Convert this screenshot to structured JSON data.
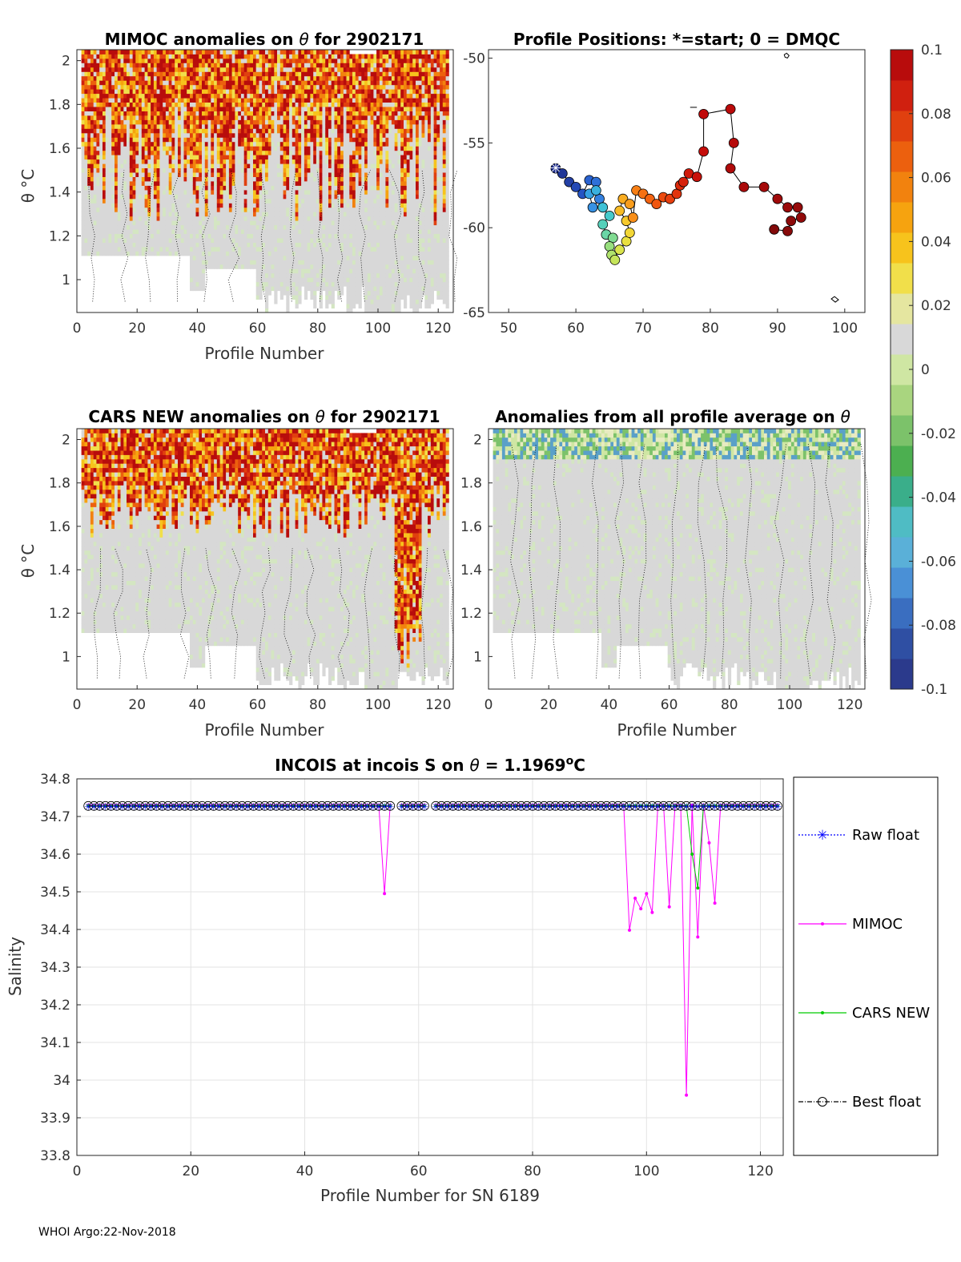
{
  "footer": "WHOI Argo:22-Nov-2018",
  "chart_data": [
    {
      "id": "mimoc",
      "type": "heatmap",
      "title_prefix": "MIMOC anomalies on ",
      "title_symbol": "θ",
      "title_suffix": "  for 2902171",
      "xlabel": "Profile Number",
      "ylabel": "θ °C",
      "xlim": [
        0,
        125
      ],
      "ylim": [
        0.85,
        2.05
      ],
      "xticks": [
        "0",
        "20",
        "40",
        "60",
        "80",
        "100",
        "120"
      ],
      "yticks": [
        "1",
        "1.2",
        "1.4",
        "1.6",
        "1.8",
        "2"
      ]
    },
    {
      "id": "positions",
      "type": "scatter",
      "title": "Profile Positions: *=start; 0 = DMQC",
      "xlim": [
        47,
        103
      ],
      "ylim": [
        -65,
        -49.5
      ],
      "xticks": [
        "50",
        "60",
        "70",
        "80",
        "90",
        "100"
      ],
      "yticks": [
        "-50",
        "-55",
        "-60",
        "-65"
      ],
      "track": [
        [
          57,
          -56.5
        ],
        [
          58,
          -56.8
        ],
        [
          59,
          -57.3
        ],
        [
          60,
          -57.6
        ],
        [
          61,
          -58
        ],
        [
          62,
          -57.2
        ],
        [
          63,
          -57.3
        ],
        [
          63.5,
          -58.3
        ],
        [
          62.5,
          -58.8
        ],
        [
          62,
          -58
        ],
        [
          63,
          -57.8
        ],
        [
          64,
          -58.8
        ],
        [
          65,
          -59.3
        ],
        [
          64,
          -59.8
        ],
        [
          64.5,
          -60.4
        ],
        [
          65.5,
          -60.6
        ],
        [
          65,
          -61.1
        ],
        [
          65.3,
          -61.6
        ],
        [
          65.8,
          -61.9
        ],
        [
          66.5,
          -61.3
        ],
        [
          67.5,
          -60.8
        ],
        [
          68,
          -60.3
        ],
        [
          67.5,
          -59.6
        ],
        [
          66.5,
          -59
        ],
        [
          67,
          -58.3
        ],
        [
          68,
          -58.6
        ],
        [
          68.5,
          -59.4
        ],
        [
          69,
          -57.8
        ],
        [
          70,
          -58
        ],
        [
          71,
          -58.3
        ],
        [
          72,
          -58.6
        ],
        [
          73,
          -58.2
        ],
        [
          74,
          -58.3
        ],
        [
          75,
          -58
        ],
        [
          75.5,
          -57.5
        ],
        [
          76,
          -57.3
        ],
        [
          76.8,
          -56.8
        ],
        [
          78,
          -57
        ],
        [
          79,
          -55.5
        ],
        [
          79,
          -53.3
        ],
        [
          83,
          -53
        ],
        [
          83.5,
          -55
        ],
        [
          83,
          -56.5
        ],
        [
          85,
          -57.6
        ],
        [
          88,
          -57.6
        ],
        [
          90,
          -58.3
        ],
        [
          91.5,
          -58.8
        ],
        [
          93,
          -58.8
        ],
        [
          93.5,
          -59.4
        ],
        [
          92,
          -59.6
        ],
        [
          91.5,
          -60.2
        ],
        [
          89.5,
          -60.1
        ]
      ],
      "track_colors": [
        "#1a2a8c",
        "#1f3597",
        "#2340a5",
        "#2348b5",
        "#2555c4",
        "#2a62cf",
        "#2f70d8",
        "#3380df",
        "#3791e3",
        "#37a1e3",
        "#3ab1de",
        "#3ec1d6",
        "#45cacb",
        "#55d0ba",
        "#6ad6a6",
        "#80db92",
        "#98df7e",
        "#b0e26c",
        "#c6e55b",
        "#dae44d",
        "#e9e040",
        "#f2d636",
        "#f6c92d",
        "#f8bb26",
        "#f9ac20",
        "#f99d1c",
        "#f88e18",
        "#f77f15",
        "#f57113",
        "#f36311",
        "#f0560f",
        "#ec4a0e",
        "#e73e0d",
        "#e2340c",
        "#dc2a0b",
        "#d6210b",
        "#d0190a",
        "#ca120a",
        "#c50d0a",
        "#c00a0a",
        "#bb0a0a",
        "#b60a0a",
        "#b00a0a",
        "#aa0a0a",
        "#a50a0a",
        "#a00a0a",
        "#9b0a0a",
        "#960a0a",
        "#910a0a",
        "#8c0a0a",
        "#870a0a",
        "#820a0a"
      ]
    },
    {
      "id": "cars",
      "type": "heatmap",
      "title_prefix": "CARS NEW anomalies on ",
      "title_symbol": "θ",
      "title_suffix": " for 2902171",
      "xlabel": "Profile Number",
      "ylabel": "θ °C",
      "xlim": [
        0,
        125
      ],
      "ylim": [
        0.85,
        2.05
      ],
      "xticks": [
        "0",
        "20",
        "40",
        "60",
        "80",
        "100",
        "120"
      ],
      "yticks": [
        "1",
        "1.2",
        "1.4",
        "1.6",
        "1.8",
        "2"
      ]
    },
    {
      "id": "allavg",
      "type": "heatmap",
      "title_prefix": "Anomalies from all profile average on ",
      "title_symbol": "θ",
      "title_suffix": "",
      "xlabel": "Profile Number",
      "xlim": [
        0,
        125
      ],
      "ylim": [
        0.85,
        2.05
      ],
      "xticks": [
        "0",
        "20",
        "40",
        "60",
        "80",
        "100",
        "120"
      ],
      "yticks": [
        "1",
        "1.2",
        "1.4",
        "1.6",
        "1.8",
        "2"
      ]
    },
    {
      "id": "colorbar",
      "type": "heatmap",
      "range": [
        -0.1,
        0.1
      ],
      "ticks": [
        "0.1",
        "0.08",
        "0.06",
        "0.04",
        "0.02",
        "0",
        "-0.02",
        "-0.04",
        "-0.06",
        "-0.08",
        "-0.1"
      ],
      "colors": [
        "#2b3a8c",
        "#2f4fa3",
        "#3a6ec0",
        "#4a90d6",
        "#5ab0d8",
        "#4fbcc4",
        "#3aae8a",
        "#4caf50",
        "#7cc26a",
        "#a9d57f",
        "#cfe6a3",
        "#d8d8d8",
        "#e5e6a0",
        "#f1df4a",
        "#f7c31c",
        "#f6a30f",
        "#f2820e",
        "#ec600e",
        "#e0400f",
        "#d0200f",
        "#b80c0c"
      ]
    },
    {
      "id": "salinity",
      "type": "line",
      "title_prefix": "INCOIS at incois S on ",
      "title_symbol": "θ",
      "title_value": " = 1.1969",
      "title_sup": "o",
      "title_unit": "C",
      "xlabel": "Profile Number for SN 6189",
      "ylabel": "Salinity",
      "xlim": [
        0,
        124
      ],
      "ylim": [
        33.8,
        34.8
      ],
      "xticks": [
        "0",
        "20",
        "40",
        "60",
        "80",
        "100",
        "120"
      ],
      "yticks": [
        "33.8",
        "33.9",
        "34",
        "34.1",
        "34.2",
        "34.3",
        "34.4",
        "34.5",
        "34.6",
        "34.7",
        "34.8"
      ],
      "legend": [
        "Raw float",
        "MIMOC",
        "CARS NEW",
        "Best float"
      ],
      "colors": {
        "raw": "#0000ff",
        "mimoc": "#ff00ff",
        "cars": "#00cc00",
        "best": "#000000"
      },
      "float_value": 34.728,
      "float_x_range": [
        2,
        123
      ],
      "gaps": [
        [
          55,
          57
        ],
        [
          61,
          63
        ]
      ],
      "mimoc_dips": [
        [
          54,
          34.495
        ],
        [
          97,
          34.398
        ],
        [
          98,
          34.483
        ],
        [
          99,
          34.455
        ],
        [
          100,
          34.495
        ],
        [
          101,
          34.445
        ],
        [
          104,
          34.46
        ],
        [
          107,
          33.96
        ],
        [
          109,
          34.38
        ],
        [
          111,
          34.63
        ],
        [
          112,
          34.47
        ]
      ],
      "cars_dips": [
        [
          108,
          34.6
        ],
        [
          109,
          34.51
        ]
      ]
    }
  ]
}
